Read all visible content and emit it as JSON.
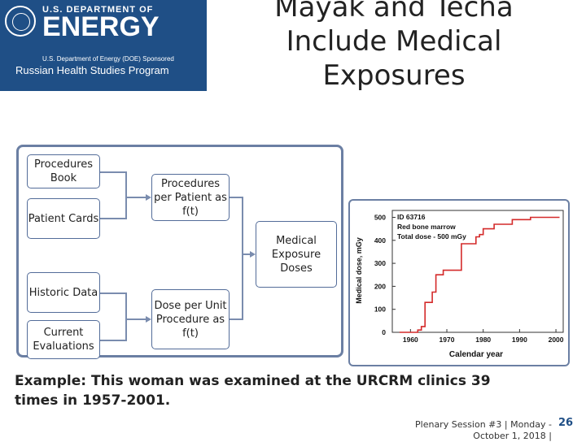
{
  "logo": {
    "dept": "U.S. DEPARTMENT OF",
    "energy": "ENERGY",
    "sponsor": "U.S. Department of Energy (DOE) Sponsored",
    "program": "Russian Health Studies Program"
  },
  "title": "Mayak and Techa Include Medical Exposures",
  "diagram": {
    "procedures_book": "Procedures Book",
    "patient_cards": "Patient Cards",
    "procedures_per_patient": "Procedures per Patient as f(t)",
    "medical_exposure_doses": "Medical Exposure Doses",
    "historic_data": "Historic Data",
    "current_evaluations": "Current Evaluations",
    "dose_per_unit_procedure": "Dose per Unit Procedure as f(t)"
  },
  "chart_data": {
    "type": "line",
    "ylabel": "Medical dose, mGy",
    "xlabel": "Calendar year",
    "xlim": [
      1955,
      2002
    ],
    "ylim": [
      0,
      530
    ],
    "xticks": [
      1960,
      1970,
      1980,
      1990,
      2000
    ],
    "yticks": [
      0,
      100,
      200,
      300,
      400,
      500
    ],
    "annotations": [
      "ID 63716",
      "Red bone marrow",
      "Total dose - 500 mGy"
    ],
    "color": "#d42a2a",
    "points": [
      [
        1957,
        0
      ],
      [
        1962,
        0
      ],
      [
        1962,
        10
      ],
      [
        1963,
        10
      ],
      [
        1963,
        25
      ],
      [
        1964,
        25
      ],
      [
        1964,
        130
      ],
      [
        1966,
        130
      ],
      [
        1966,
        175
      ],
      [
        1967,
        175
      ],
      [
        1967,
        250
      ],
      [
        1969,
        250
      ],
      [
        1969,
        270
      ],
      [
        1974,
        270
      ],
      [
        1974,
        385
      ],
      [
        1978,
        385
      ],
      [
        1978,
        415
      ],
      [
        1979,
        415
      ],
      [
        1979,
        425
      ],
      [
        1980,
        425
      ],
      [
        1980,
        450
      ],
      [
        1983,
        450
      ],
      [
        1983,
        470
      ],
      [
        1988,
        470
      ],
      [
        1988,
        490
      ],
      [
        1993,
        490
      ],
      [
        1993,
        500
      ],
      [
        2001,
        500
      ]
    ]
  },
  "example": "Example: This woman was examined at the URCRM clinics 39 times in 1957-2001.",
  "footer": {
    "session": "Plenary Session #3 | Monday - October 1, 2018 |",
    "page": "26"
  }
}
